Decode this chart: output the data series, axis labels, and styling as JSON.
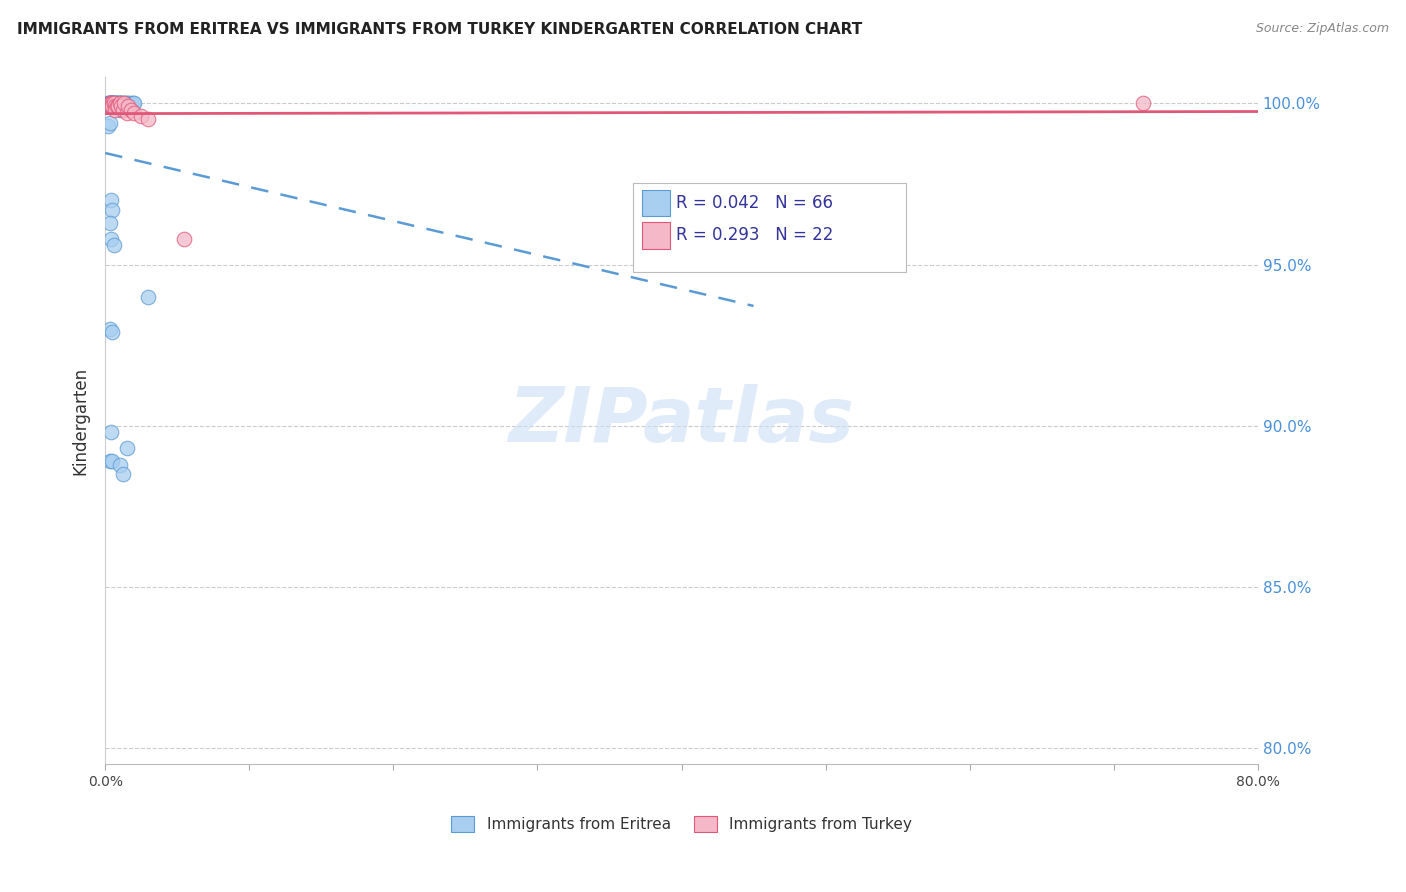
{
  "title": "IMMIGRANTS FROM ERITREA VS IMMIGRANTS FROM TURKEY KINDERGARTEN CORRELATION CHART",
  "source": "Source: ZipAtlas.com",
  "ylabel_label": "Kindergarten",
  "xlim": [
    0.0,
    0.8
  ],
  "ylim": [
    0.795,
    1.008
  ],
  "eritrea_R": 0.042,
  "eritrea_N": 66,
  "turkey_R": 0.293,
  "turkey_N": 22,
  "eritrea_color": "#a8cef0",
  "turkey_color": "#f5b8c8",
  "eritrea_edge_color": "#5b9bd5",
  "turkey_edge_color": "#e05878",
  "eritrea_line_color": "#5b9bd5",
  "turkey_line_color": "#e05878",
  "watermark_color": "#ddeeff",
  "eritrea_x": [
    0.002,
    0.002,
    0.003,
    0.003,
    0.003,
    0.003,
    0.003,
    0.004,
    0.004,
    0.004,
    0.004,
    0.004,
    0.004,
    0.005,
    0.005,
    0.005,
    0.005,
    0.005,
    0.005,
    0.006,
    0.006,
    0.006,
    0.006,
    0.007,
    0.007,
    0.007,
    0.007,
    0.008,
    0.008,
    0.008,
    0.009,
    0.009,
    0.009,
    0.01,
    0.01,
    0.01,
    0.011,
    0.011,
    0.012,
    0.012,
    0.013,
    0.013,
    0.014,
    0.015,
    0.015,
    0.016,
    0.017,
    0.018,
    0.019,
    0.02,
    0.002,
    0.003,
    0.004,
    0.005,
    0.003,
    0.004,
    0.006,
    0.003,
    0.005,
    0.004,
    0.015,
    0.03,
    0.003,
    0.005,
    0.01,
    0.012
  ],
  "eritrea_y": [
    1.0,
    1.0,
    1.0,
    1.0,
    1.0,
    0.999,
    1.0,
    1.0,
    0.999,
    0.999,
    1.0,
    1.0,
    1.0,
    0.999,
    1.0,
    1.0,
    0.999,
    1.0,
    0.999,
    1.0,
    1.0,
    1.0,
    0.999,
    1.0,
    1.0,
    0.999,
    1.0,
    1.0,
    0.999,
    1.0,
    1.0,
    1.0,
    0.999,
    1.0,
    0.998,
    1.0,
    1.0,
    1.0,
    1.0,
    0.999,
    1.0,
    0.999,
    1.0,
    1.0,
    0.999,
    1.0,
    0.999,
    1.0,
    1.0,
    1.0,
    0.993,
    0.994,
    0.97,
    0.967,
    0.963,
    0.958,
    0.956,
    0.93,
    0.929,
    0.898,
    0.893,
    0.94,
    0.889,
    0.889,
    0.888,
    0.885
  ],
  "turkey_x": [
    0.003,
    0.004,
    0.004,
    0.005,
    0.005,
    0.006,
    0.007,
    0.007,
    0.008,
    0.009,
    0.01,
    0.011,
    0.012,
    0.013,
    0.015,
    0.016,
    0.018,
    0.02,
    0.025,
    0.03,
    0.055,
    0.72
  ],
  "turkey_y": [
    1.0,
    1.0,
    0.999,
    1.0,
    0.999,
    1.0,
    0.999,
    0.998,
    0.999,
    0.999,
    1.0,
    0.999,
    0.998,
    1.0,
    0.997,
    0.999,
    0.998,
    0.997,
    0.996,
    0.995,
    0.958,
    1.0
  ],
  "x_ticks": [
    0.0,
    0.1,
    0.2,
    0.3,
    0.4,
    0.5,
    0.6,
    0.7,
    0.8
  ],
  "x_tick_labels": [
    "0.0%",
    "",
    "",
    "",
    "",
    "",
    "",
    "",
    "80.0%"
  ],
  "y_ticks": [
    0.8,
    0.85,
    0.9,
    0.95,
    1.0
  ],
  "y_tick_labels": [
    "80.0%",
    "85.0%",
    "90.0%",
    "95.0%",
    "100.0%"
  ]
}
